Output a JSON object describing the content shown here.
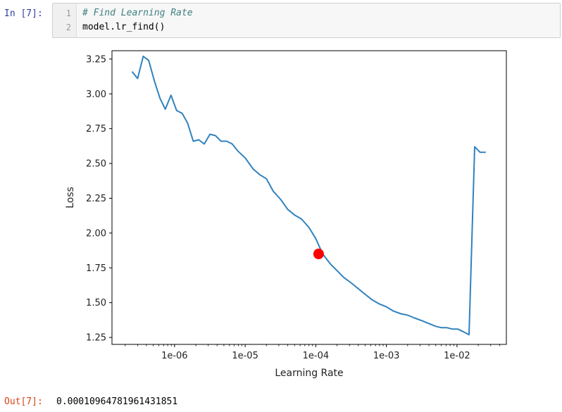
{
  "input_cell": {
    "prompt": "In [7]:",
    "lines": [
      {
        "number": "1",
        "text": "# Find Learning Rate"
      },
      {
        "number": "2",
        "text": "model.lr_find()"
      }
    ]
  },
  "output_cell": {
    "prompt": "Out[7]:",
    "value": "0.00010964781961431851"
  },
  "chart_data": {
    "type": "line",
    "title": "",
    "xlabel": "Learning Rate",
    "ylabel": "Loss",
    "x_scale": "log",
    "xlim": [
      1.3e-07,
      0.05
    ],
    "ylim": [
      1.2,
      3.31
    ],
    "x_ticks": [
      {
        "value": 1e-06,
        "label": "1e-06"
      },
      {
        "value": 1e-05,
        "label": "1e-05"
      },
      {
        "value": 0.0001,
        "label": "1e-04"
      },
      {
        "value": 0.001,
        "label": "1e-03"
      },
      {
        "value": 0.01,
        "label": "1e-02"
      }
    ],
    "y_ticks": [
      1.25,
      1.5,
      1.75,
      2.0,
      2.25,
      2.5,
      2.75,
      3.0,
      3.25
    ],
    "y_tick_labels": [
      "1.25",
      "1.50",
      "1.75",
      "2.00",
      "2.25",
      "2.50",
      "2.75",
      "3.00",
      "3.25"
    ],
    "grid": false,
    "line_color": "#3182bd",
    "marker_color": "#ff0000",
    "series": [
      {
        "x": [
          2.5e-07,
          3e-07,
          3.6e-07,
          4.3e-07,
          5.2e-07,
          6.2e-07,
          7.4e-07,
          8.9e-07,
          1.07e-06,
          1.28e-06,
          1.53e-06,
          1.84e-06,
          2.2e-06,
          2.64e-06,
          3.17e-06,
          3.8e-06,
          4.55e-06,
          5.46e-06,
          6.55e-06,
          7.85e-06,
          1e-05,
          1.3e-05,
          1.6e-05,
          2e-05,
          2.5e-05,
          3.2e-05,
          4e-05,
          5e-05,
          6.3e-05,
          8e-05,
          0.0001,
          0.000125,
          0.00016,
          0.0002,
          0.00025,
          0.00032,
          0.0004,
          0.0005,
          0.00063,
          0.0008,
          0.001,
          0.00125,
          0.0016,
          0.002,
          0.0025,
          0.0032,
          0.004,
          0.005,
          0.006,
          0.0072,
          0.0086,
          0.0103,
          0.0124,
          0.0148,
          0.0178,
          0.0213,
          0.0256
        ],
        "y": [
          3.16,
          3.11,
          3.27,
          3.24,
          3.09,
          2.97,
          2.89,
          2.99,
          2.88,
          2.86,
          2.79,
          2.66,
          2.67,
          2.64,
          2.71,
          2.7,
          2.66,
          2.66,
          2.64,
          2.59,
          2.54,
          2.46,
          2.42,
          2.39,
          2.3,
          2.24,
          2.17,
          2.13,
          2.1,
          2.04,
          1.96,
          1.85,
          1.78,
          1.73,
          1.68,
          1.64,
          1.6,
          1.56,
          1.52,
          1.49,
          1.47,
          1.44,
          1.42,
          1.41,
          1.39,
          1.37,
          1.35,
          1.33,
          1.32,
          1.32,
          1.31,
          1.31,
          1.29,
          1.27,
          2.62,
          2.58,
          2.58
        ]
      }
    ],
    "marker": {
      "x": 0.00010964781961431851,
      "y": 1.85
    }
  }
}
